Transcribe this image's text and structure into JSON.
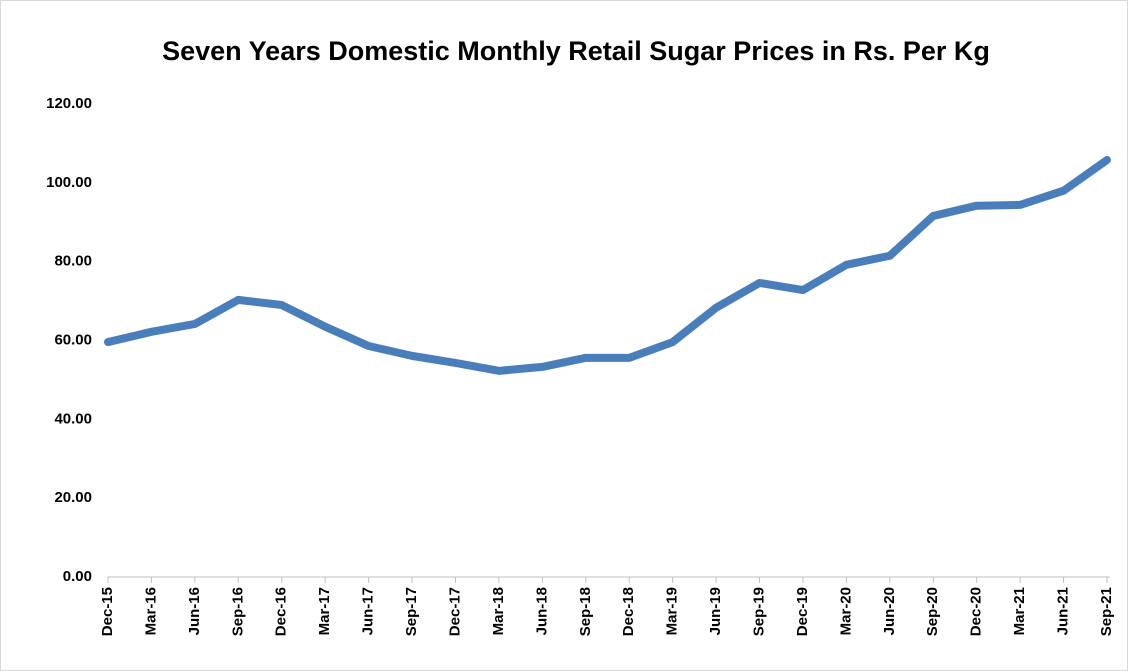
{
  "chart_data": {
    "type": "line",
    "title": "Seven Years Domestic Monthly Retail Sugar Prices in Rs. Per Kg",
    "categories": [
      "Dec-15",
      "Mar-16",
      "Jun-16",
      "Sep-16",
      "Dec-16",
      "Mar-17",
      "Jun-17",
      "Sep-17",
      "Dec-17",
      "Mar-18",
      "Jun-18",
      "Sep-18",
      "Dec-18",
      "Mar-19",
      "Jun-19",
      "Sep-19",
      "Dec-19",
      "Mar-20",
      "Jun-20",
      "Sep-20",
      "Dec-20",
      "Mar-21",
      "Jun-21",
      "Sep-21"
    ],
    "values": [
      59.6,
      62.2,
      64.2,
      70.3,
      69.0,
      63.5,
      58.6,
      56.1,
      54.3,
      52.3,
      53.3,
      55.6,
      55.6,
      59.6,
      68.3,
      74.6,
      72.8,
      79.2,
      81.5,
      91.6,
      94.2,
      94.4,
      98.0,
      105.8
    ],
    "color": "#4a7ebb",
    "ylim": [
      0,
      120
    ],
    "yticks": [
      {
        "value": 0,
        "label": "0.00"
      },
      {
        "value": 20,
        "label": "20.00"
      },
      {
        "value": 40,
        "label": "40.00"
      },
      {
        "value": 60,
        "label": "60.00"
      },
      {
        "value": 80,
        "label": "80.00"
      },
      {
        "value": 100,
        "label": "100.00"
      },
      {
        "value": 120,
        "label": "120.00"
      }
    ],
    "grid": false
  }
}
